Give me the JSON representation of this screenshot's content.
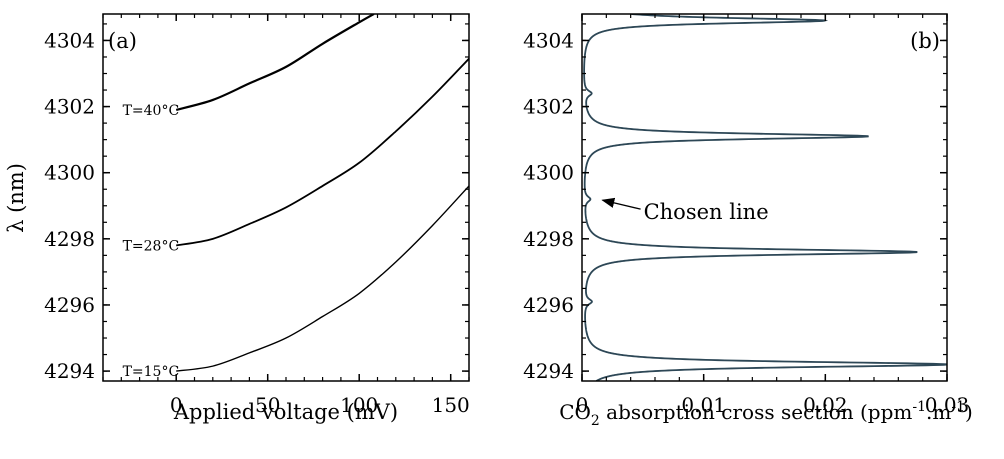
{
  "chart_data": [
    {
      "type": "line",
      "panel_label": "(a)",
      "xlabel": "Applied voltage (mV)",
      "ylabel": "λ (nm)",
      "xlim": [
        -40,
        160
      ],
      "ylim": [
        4293.7,
        4304.8
      ],
      "x_ticks": [
        0,
        50,
        100,
        150
      ],
      "y_ticks": [
        4294,
        4296,
        4298,
        4300,
        4302,
        4304
      ],
      "grid": false,
      "series": [
        {
          "name": "T=40°C",
          "x": [
            0,
            20,
            40,
            60,
            80,
            100,
            108
          ],
          "y": [
            4301.9,
            4302.2,
            4302.7,
            4303.2,
            4303.9,
            4304.55,
            4304.8
          ]
        },
        {
          "name": "T=28°C",
          "x": [
            0,
            20,
            40,
            60,
            80,
            100,
            120,
            140,
            160
          ],
          "y": [
            4297.8,
            4298.0,
            4298.45,
            4298.95,
            4299.6,
            4300.3,
            4301.25,
            4302.3,
            4303.45
          ]
        },
        {
          "name": "T=15°C",
          "x": [
            0,
            20,
            40,
            60,
            80,
            100,
            120,
            140,
            160
          ],
          "y": [
            4294.0,
            4294.15,
            4294.55,
            4295.0,
            4295.65,
            4296.35,
            4297.3,
            4298.4,
            4299.6
          ]
        }
      ]
    },
    {
      "type": "line",
      "panel_label": "(b)",
      "xlabel": "CO2 absorption cross section (ppm-1.m-1)",
      "ylabel": "",
      "xlim": [
        0,
        0.03
      ],
      "ylim": [
        4293.7,
        4304.8
      ],
      "x_ticks": [
        0,
        0.01,
        0.02,
        0.03
      ],
      "x_tick_labels": [
        "0",
        "0.01",
        "0.02",
        "0.03"
      ],
      "y_ticks": [
        4294,
        4296,
        4298,
        4300,
        4302,
        4304
      ],
      "grid": false,
      "color": "#2d4756",
      "peaks": [
        {
          "center": 4294.2,
          "height": 0.03,
          "width": 0.1
        },
        {
          "center": 4297.6,
          "height": 0.0275,
          "width": 0.1
        },
        {
          "center": 4301.1,
          "height": 0.0235,
          "width": 0.1
        },
        {
          "center": 4304.6,
          "height": 0.0199,
          "width": 0.1
        },
        {
          "center": 4296.1,
          "height": 0.0006,
          "width": 0.1
        },
        {
          "center": 4299.2,
          "height": 0.0005,
          "width": 0.1
        },
        {
          "center": 4302.4,
          "height": 0.0006,
          "width": 0.1
        },
        {
          "center": 4305.2,
          "height": 0.0008,
          "width": 0.1
        }
      ],
      "annotation": {
        "text": "Chosen line",
        "x": 0.0012,
        "y": 4299.2
      }
    }
  ],
  "xlabel_b_parts": {
    "pre": "CO",
    "sub": "2",
    "mid": " absorption cross section (ppm",
    "sup1": "-1",
    "mid2": ".m",
    "sup2": "-1",
    "post": ")"
  }
}
